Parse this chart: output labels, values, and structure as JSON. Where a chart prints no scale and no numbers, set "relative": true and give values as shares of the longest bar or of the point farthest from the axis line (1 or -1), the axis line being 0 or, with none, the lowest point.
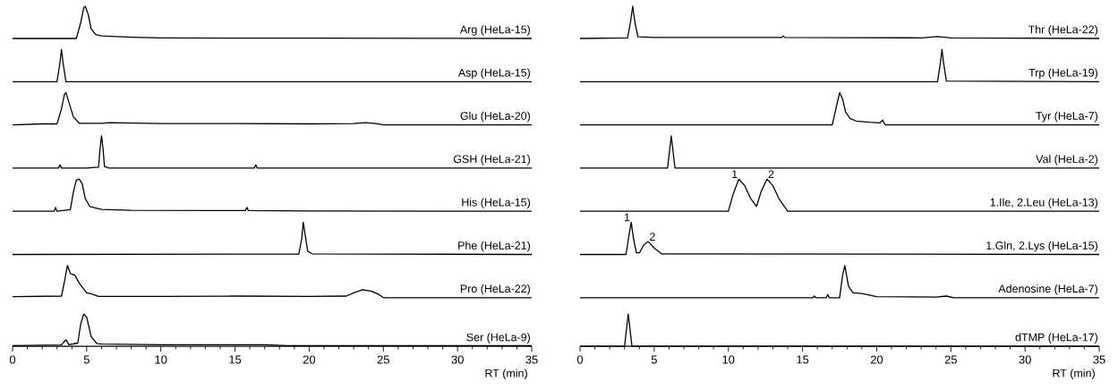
{
  "chart_data": [
    {
      "type": "line",
      "relative": true,
      "xlim": [
        0,
        35
      ],
      "series": [
        {
          "name": "Arg (HeLa-15)",
          "color": "#000000",
          "x": [
            0,
            2,
            4.3,
            4.6,
            4.8,
            4.9,
            5.1,
            5.3,
            5.6,
            6,
            7,
            8,
            10,
            15,
            20,
            35
          ],
          "values": [
            0,
            0,
            0,
            0.5,
            0.95,
            1,
            0.75,
            0.3,
            0.12,
            0.08,
            0.06,
            0.04,
            0.02,
            0.01,
            0.01,
            0
          ]
        }
      ]
    },
    {
      "type": "line",
      "relative": true,
      "xlim": [
        0,
        35
      ],
      "series": [
        {
          "name": "Asp (HeLa-15)",
          "color": "#000000",
          "x": [
            0,
            3.0,
            3.2,
            3.3,
            3.4,
            3.6,
            35
          ],
          "values": [
            0,
            0,
            0.6,
            1,
            0.6,
            0,
            0
          ]
        }
      ]
    },
    {
      "type": "line",
      "relative": true,
      "xlim": [
        0,
        35
      ],
      "series": [
        {
          "name": "Glu (HeLa-20)",
          "color": "#000000",
          "x": [
            0,
            2,
            3.0,
            3.3,
            3.5,
            3.6,
            3.8,
            4.1,
            4.5,
            6,
            6.5,
            10,
            15,
            20,
            23,
            23.8,
            24.5,
            25,
            35
          ],
          "values": [
            0,
            0.03,
            0.03,
            0.5,
            0.95,
            1,
            0.7,
            0.25,
            0.05,
            0.05,
            0.07,
            0.04,
            0.04,
            0.03,
            0.04,
            0.07,
            0.04,
            0,
            0
          ]
        }
      ]
    },
    {
      "type": "line",
      "relative": true,
      "xlim": [
        0,
        35
      ],
      "series": [
        {
          "name": "GSH (HeLa-21)",
          "color": "#000000",
          "x": [
            0,
            3.1,
            3.2,
            3.3,
            5,
            5.8,
            5.9,
            6.0,
            6.1,
            6.2,
            6.5,
            16.3,
            16.4,
            16.5,
            35
          ],
          "values": [
            0,
            0,
            0.1,
            0,
            0,
            0.03,
            0.6,
            1,
            0.6,
            0.05,
            0,
            0,
            0.1,
            0,
            0
          ]
        }
      ]
    },
    {
      "type": "line",
      "relative": true,
      "xlim": [
        0,
        35
      ],
      "series": [
        {
          "name": "His (HeLa-15)",
          "color": "#000000",
          "x": [
            0,
            2.8,
            2.9,
            3.0,
            3.9,
            4.1,
            4.3,
            4.5,
            4.7,
            4.9,
            5.2,
            6,
            8,
            15.7,
            15.8,
            15.9,
            20,
            35
          ],
          "values": [
            0,
            0,
            0.12,
            0,
            0.05,
            0.6,
            0.97,
            1,
            0.85,
            0.4,
            0.15,
            0.06,
            0.03,
            0.02,
            0.12,
            0.02,
            0.01,
            0
          ]
        }
      ]
    },
    {
      "type": "line",
      "relative": true,
      "xlim": [
        0,
        35
      ],
      "series": [
        {
          "name": "Phe (HeLa-21)",
          "color": "#000000",
          "x": [
            0,
            19.3,
            19.5,
            19.6,
            19.7,
            19.9,
            20.2,
            35
          ],
          "values": [
            0,
            0.01,
            0.5,
            1,
            0.7,
            0.1,
            0.02,
            0
          ]
        }
      ]
    },
    {
      "type": "line",
      "relative": true,
      "xlim": [
        0,
        35
      ],
      "series": [
        {
          "name": "Pro (HeLa-22)",
          "color": "#000000",
          "x": [
            0,
            3.3,
            3.5,
            3.7,
            3.9,
            4.2,
            4.5,
            5,
            5.3,
            5.8,
            10,
            15,
            20,
            22.5,
            23,
            23.6,
            24.2,
            24.7,
            25,
            35
          ],
          "values": [
            0.03,
            0.05,
            0.5,
            1,
            0.75,
            0.7,
            0.45,
            0.15,
            0.12,
            0.04,
            0.04,
            0.05,
            0.04,
            0.05,
            0.15,
            0.25,
            0.2,
            0.1,
            0,
            0
          ]
        }
      ]
    },
    {
      "type": "line",
      "relative": true,
      "xlim": [
        0,
        35
      ],
      "xticks": [
        0,
        {
          "value": 1,
          "label": null
        },
        {
          "value": 2,
          "label": null
        },
        {
          "value": 3,
          "label": null
        },
        {
          "value": 4,
          "label": null
        },
        5,
        {
          "value": 6,
          "label": null
        },
        {
          "value": 7,
          "label": null
        },
        {
          "value": 8,
          "label": null
        },
        {
          "value": 9,
          "label": null
        },
        10,
        {
          "value": 11,
          "label": null
        },
        {
          "value": 12,
          "label": null
        },
        {
          "value": 13,
          "label": null
        },
        {
          "value": 14,
          "label": null
        },
        15,
        {
          "value": 16,
          "label": null
        },
        {
          "value": 17,
          "label": null
        },
        {
          "value": 18,
          "label": null
        },
        {
          "value": 19,
          "label": null
        },
        20,
        {
          "value": 21,
          "label": null
        },
        {
          "value": 22,
          "label": null
        },
        {
          "value": 23,
          "label": null
        },
        {
          "value": 24,
          "label": null
        },
        25,
        {
          "value": 26,
          "label": null
        },
        {
          "value": 27,
          "label": null
        },
        {
          "value": 28,
          "label": null
        },
        {
          "value": 29,
          "label": null
        },
        30,
        {
          "value": 31,
          "label": null
        },
        {
          "value": 32,
          "label": null
        },
        {
          "value": 33,
          "label": null
        },
        {
          "value": 34,
          "label": null
        },
        35
      ],
      "xlabel": "RT (min)",
      "series": [
        {
          "name": "Ser (HeLa-9)",
          "color": "#000000",
          "x": [
            0,
            3.3,
            3.5,
            3.6,
            3.8,
            4.4,
            4.6,
            4.8,
            5.0,
            5.3,
            5.7,
            6,
            10,
            17,
            18.5,
            35
          ],
          "values": [
            0.02,
            0.04,
            0.15,
            0.2,
            0.05,
            0.1,
            0.7,
            1,
            0.9,
            0.3,
            0.08,
            0.07,
            0.05,
            0.05,
            0.02,
            0.02
          ]
        }
      ]
    },
    {
      "type": "line",
      "relative": true,
      "xlim": [
        0,
        35
      ],
      "series": [
        {
          "name": "Thr (HeLa-22)",
          "color": "#000000",
          "x": [
            0,
            3.2,
            3.4,
            3.55,
            3.7,
            3.9,
            5,
            13.6,
            13.7,
            13.8,
            23,
            24.1,
            25,
            35
          ],
          "values": [
            0,
            0.02,
            0.5,
            1,
            0.5,
            0.05,
            0.03,
            0.03,
            0.08,
            0.03,
            0.02,
            0.06,
            0.02,
            0
          ]
        }
      ]
    },
    {
      "type": "line",
      "relative": true,
      "xlim": [
        0,
        35
      ],
      "series": [
        {
          "name": "Trp (HeLa-19)",
          "color": "#000000",
          "x": [
            0,
            24.1,
            24.3,
            24.4,
            24.5,
            24.7,
            35
          ],
          "values": [
            0,
            0,
            0.6,
            1,
            0.6,
            0.02,
            0
          ]
        }
      ]
    },
    {
      "type": "line",
      "relative": true,
      "xlim": [
        0,
        35
      ],
      "series": [
        {
          "name": "Tyr (HeLa-7)",
          "color": "#000000",
          "x": [
            0,
            17.0,
            17.3,
            17.5,
            17.7,
            17.9,
            18.2,
            18.6,
            19.5,
            20.2,
            20.4,
            20.5,
            20.6,
            35
          ],
          "values": [
            0,
            0,
            0.6,
            1,
            0.8,
            0.4,
            0.2,
            0.12,
            0.08,
            0.06,
            0.15,
            0.05,
            0,
            0
          ]
        }
      ]
    },
    {
      "type": "line",
      "relative": true,
      "xlim": [
        0,
        35
      ],
      "series": [
        {
          "name": "Val (HeLa-2)",
          "color": "#000000",
          "x": [
            0,
            5.9,
            6.05,
            6.15,
            6.25,
            6.4,
            35
          ],
          "values": [
            0,
            0,
            0.6,
            1,
            0.6,
            0,
            0
          ]
        }
      ]
    },
    {
      "type": "line",
      "relative": true,
      "xlim": [
        0,
        35
      ],
      "annotations": [
        {
          "text": "1",
          "x": 10.7,
          "y": 1
        },
        {
          "text": "2",
          "x": 12.6,
          "y": 1
        }
      ],
      "series": [
        {
          "name": "1.Ile, 2.Leu (HeLa-13)",
          "color": "#000000",
          "x": [
            0,
            10.0,
            10.3,
            10.7,
            11.1,
            11.5,
            11.9,
            12.2,
            12.6,
            13.0,
            13.4,
            14.0,
            35
          ],
          "values": [
            0,
            0,
            0.5,
            1,
            0.8,
            0.4,
            0.15,
            0.6,
            1,
            0.8,
            0.4,
            0,
            0
          ]
        }
      ]
    },
    {
      "type": "line",
      "relative": true,
      "xlim": [
        0,
        35
      ],
      "annotations": [
        {
          "text": "1",
          "x": 3.45,
          "y": 1
        },
        {
          "text": "2",
          "x": 4.6,
          "y": 0.4
        }
      ],
      "series": [
        {
          "name": "1.Gln, 2.Lys (HeLa-15)",
          "color": "#000000",
          "x": [
            0,
            3.1,
            3.3,
            3.45,
            3.6,
            3.8,
            4.0,
            4.3,
            4.6,
            5.0,
            5.5,
            35
          ],
          "values": [
            0,
            0,
            0.6,
            1,
            0.5,
            0.05,
            0.05,
            0.3,
            0.4,
            0.2,
            0.02,
            0
          ]
        }
      ]
    },
    {
      "type": "line",
      "relative": true,
      "xlim": [
        0,
        35
      ],
      "series": [
        {
          "name": "Adenosine (HeLa-7)",
          "color": "#000000",
          "x": [
            0,
            15.7,
            15.8,
            15.9,
            16.6,
            16.7,
            16.8,
            17.5,
            17.7,
            17.85,
            18.1,
            18.4,
            19,
            19.5,
            20,
            24,
            24.7,
            25.2,
            35
          ],
          "values": [
            0,
            0,
            0.05,
            0,
            0,
            0.1,
            0,
            0,
            0.7,
            1,
            0.35,
            0.15,
            0.13,
            0.08,
            0.03,
            0.02,
            0.05,
            0,
            0
          ]
        }
      ]
    },
    {
      "type": "line",
      "relative": true,
      "xlim": [
        0,
        35
      ],
      "xticks": [
        0,
        {
          "value": 1,
          "label": null
        },
        {
          "value": 2,
          "label": null
        },
        {
          "value": 3,
          "label": null
        },
        {
          "value": 4,
          "label": null
        },
        5,
        {
          "value": 6,
          "label": null
        },
        {
          "value": 7,
          "label": null
        },
        {
          "value": 8,
          "label": null
        },
        {
          "value": 9,
          "label": null
        },
        10,
        {
          "value": 11,
          "label": null
        },
        {
          "value": 12,
          "label": null
        },
        {
          "value": 13,
          "label": null
        },
        {
          "value": 14,
          "label": null
        },
        15,
        {
          "value": 16,
          "label": null
        },
        {
          "value": 17,
          "label": null
        },
        {
          "value": 18,
          "label": null
        },
        {
          "value": 19,
          "label": null
        },
        20,
        {
          "value": 21,
          "label": null
        },
        {
          "value": 22,
          "label": null
        },
        {
          "value": 23,
          "label": null
        },
        {
          "value": 24,
          "label": null
        },
        25,
        {
          "value": 26,
          "label": null
        },
        {
          "value": 27,
          "label": null
        },
        {
          "value": 28,
          "label": null
        },
        {
          "value": 29,
          "label": null
        },
        30,
        {
          "value": 31,
          "label": null
        },
        {
          "value": 32,
          "label": null
        },
        {
          "value": 33,
          "label": null
        },
        {
          "value": 34,
          "label": null
        },
        35
      ],
      "xlabel": "RT (min)",
      "series": [
        {
          "name": "dTMP (HeLa-17)",
          "color": "#000000",
          "x": [
            0,
            3.0,
            3.15,
            3.25,
            3.35,
            3.5,
            35
          ],
          "values": [
            0,
            0,
            0.6,
            1,
            0.6,
            0,
            0
          ]
        }
      ]
    }
  ]
}
